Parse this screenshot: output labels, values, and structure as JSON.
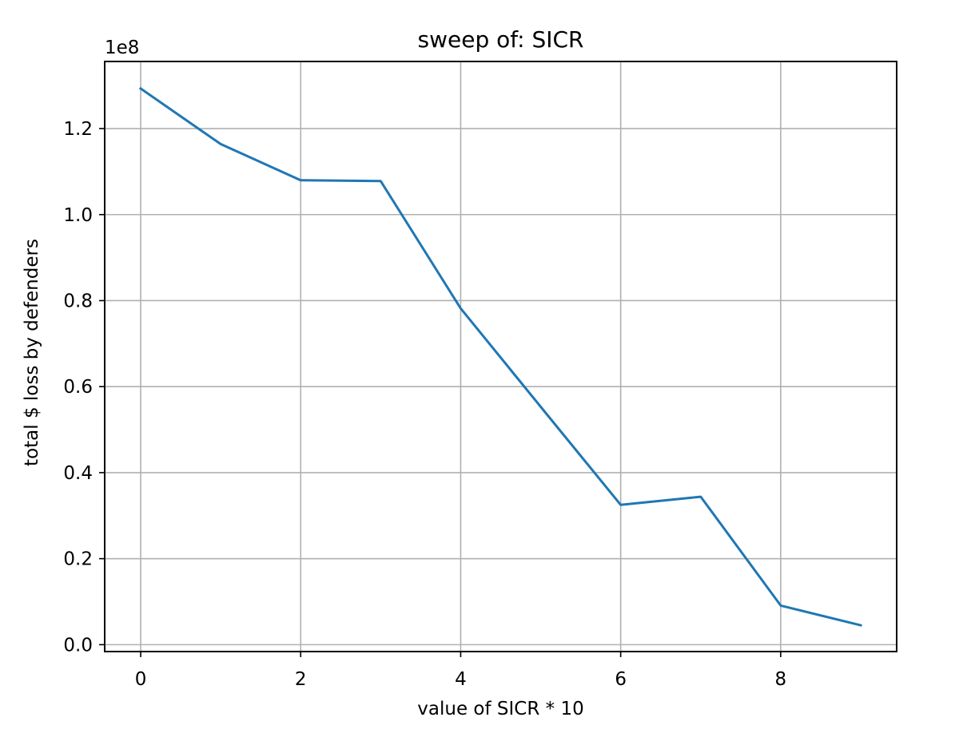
{
  "chart_data": {
    "type": "line",
    "title": "sweep of: SICR",
    "xlabel": "value of SICR * 10",
    "ylabel": "total $ loss by defenders",
    "y_offset_label": "1e8",
    "xlim": [
      -0.45,
      9.45
    ],
    "ylim": [
      -0.016,
      1.356
    ],
    "y_scale_note": "values in units of 1e8",
    "x_ticks": [
      0,
      2,
      4,
      6,
      8
    ],
    "x_tick_labels": [
      "0",
      "2",
      "4",
      "6",
      "8"
    ],
    "y_ticks": [
      0.0,
      0.2,
      0.4,
      0.6,
      0.8,
      1.0,
      1.2
    ],
    "y_tick_labels": [
      "0.0",
      "0.2",
      "0.4",
      "0.6",
      "0.8",
      "1.0",
      "1.2"
    ],
    "grid": true,
    "line_color": "#1f77b4",
    "series": [
      {
        "x": [
          0,
          1,
          2,
          3,
          4,
          5,
          6,
          7,
          8,
          9
        ],
        "values": [
          1.293,
          1.164,
          1.08,
          1.078,
          0.782,
          0.553,
          0.325,
          0.344,
          0.091,
          0.045
        ]
      }
    ]
  }
}
